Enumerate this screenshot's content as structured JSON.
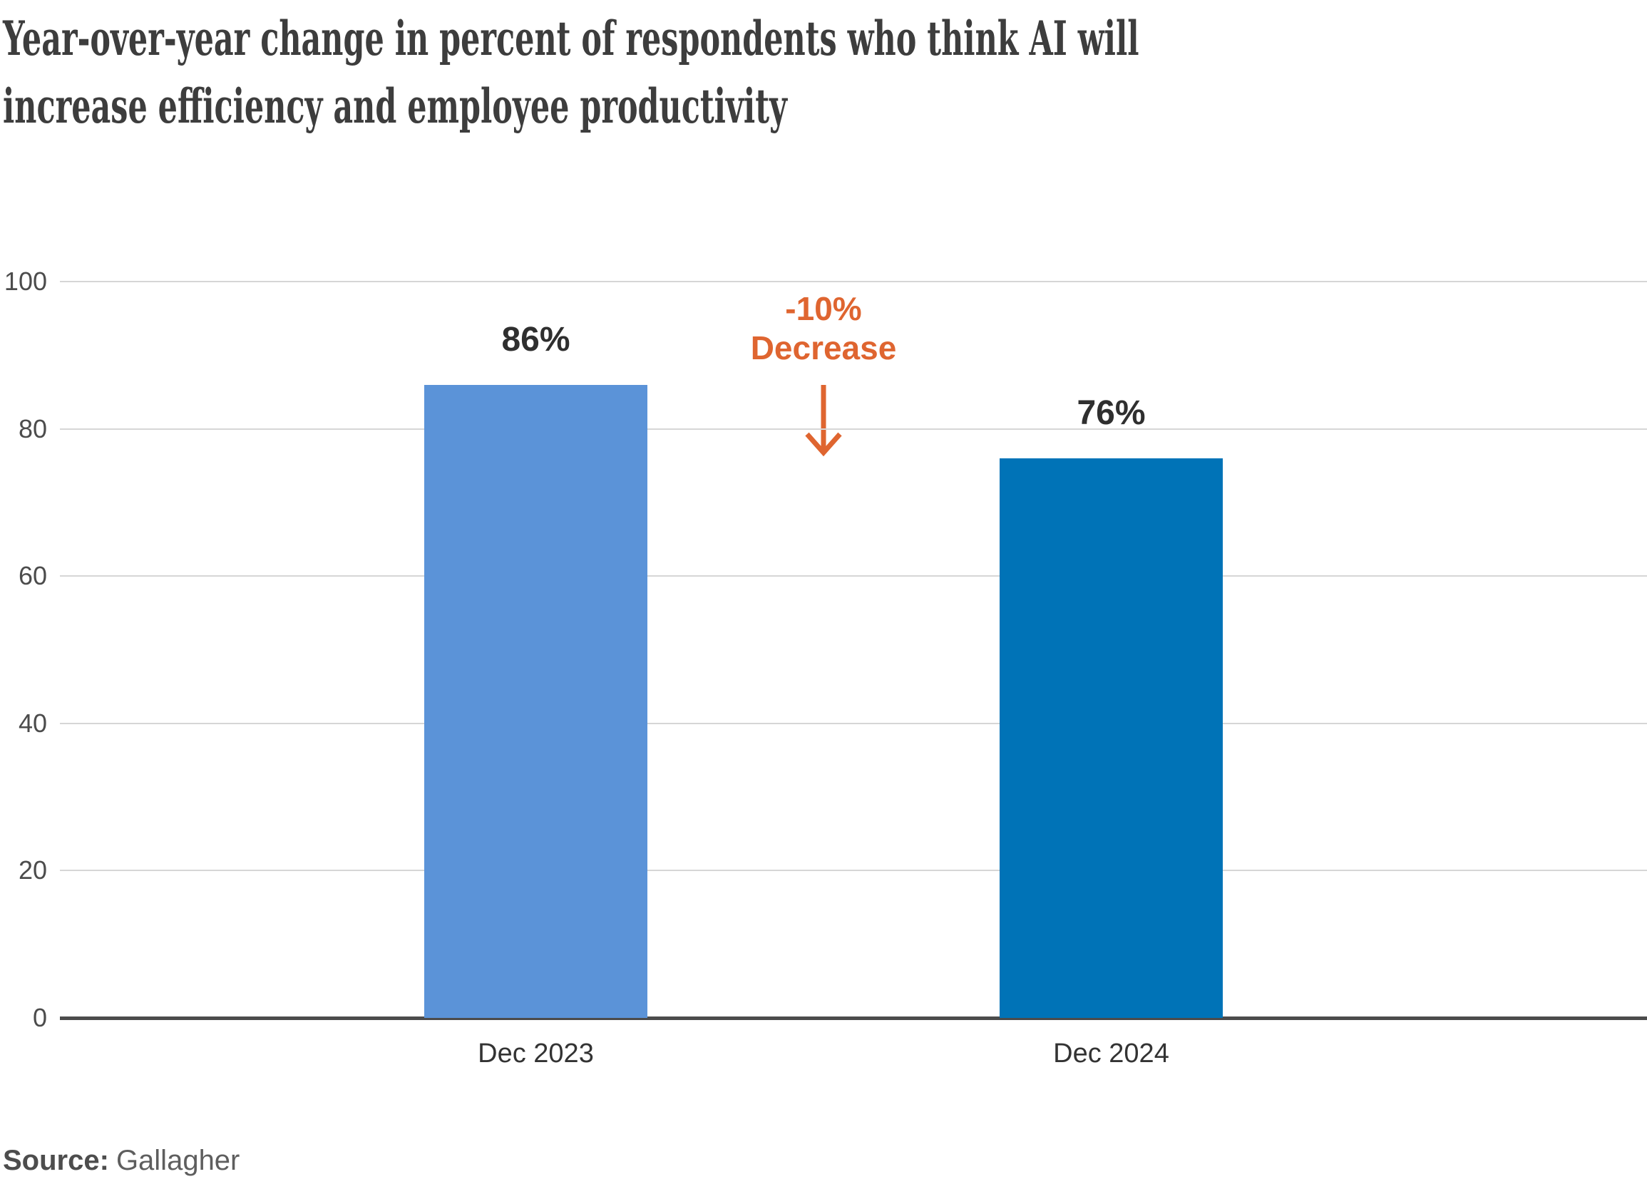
{
  "title": {
    "line1": "Year-over-year change in percent of respondents who think AI will",
    "line2": "increase efficiency and employee productivity"
  },
  "source": {
    "label": "Source:",
    "value": "Gallagher"
  },
  "chart_data": {
    "type": "bar",
    "title": "Year-over-year change in percent of respondents who think AI will increase efficiency and employee productivity",
    "categories": [
      "Dec 2023",
      "Dec 2024"
    ],
    "values": [
      86,
      76
    ],
    "value_labels": [
      "86%",
      "76%"
    ],
    "annotation": {
      "line1": "-10%",
      "line2": "Decrease",
      "meaning": "change from Dec 2023 to Dec 2024"
    },
    "xlabel": "",
    "ylabel": "",
    "ylim": [
      0,
      100
    ],
    "yticks": [
      0,
      20,
      40,
      60,
      80,
      100
    ],
    "grid": true,
    "legend": false,
    "bar_colors": [
      "#5B93D8",
      "#0073B7"
    ],
    "annotation_color": "#DF6530",
    "source": "Gallagher"
  },
  "colors": {
    "bar_dec_2023": "#5B93D8",
    "bar_dec_2024": "#0073B7",
    "decrease_orange": "#DF6530",
    "title_text": "#3D3D3D",
    "axis_line": "#4B4B4B",
    "gridline": "#D6D6D6",
    "tick_label": "#4C4C4C",
    "bar_value_label": "#2F2F2F",
    "category_label": "#333333",
    "source_label": "#4D4D4D",
    "source_value": "#5E5E5E",
    "background": "#FFFFFF"
  }
}
